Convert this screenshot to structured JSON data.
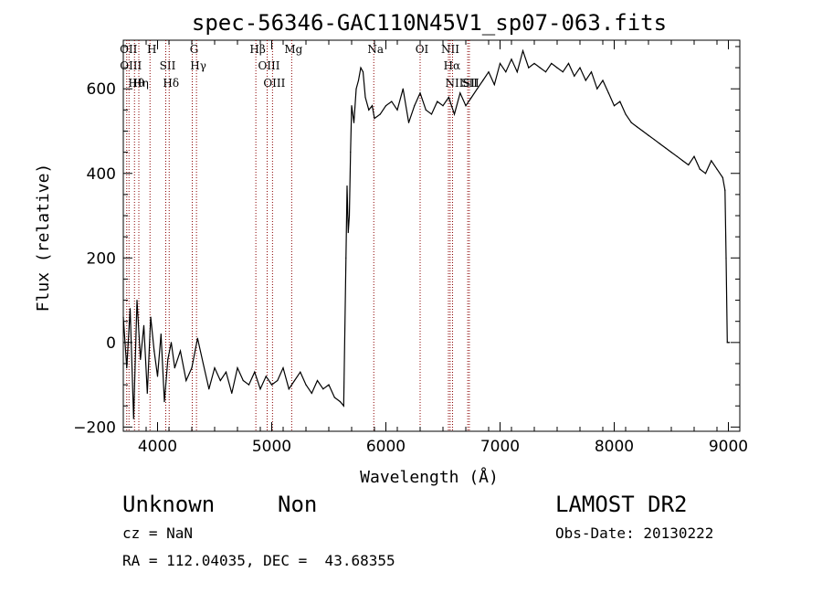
{
  "chart_data": {
    "type": "line",
    "title": "spec-56346-GAC110N45V1_sp07-063.fits",
    "xlabel": "Wavelength (Å)",
    "ylabel": "Flux (relative)",
    "xlim": [
      3700,
      9100
    ],
    "ylim": [
      -210,
      715
    ],
    "x_ticks": [
      4000,
      5000,
      6000,
      7000,
      8000,
      9000
    ],
    "y_ticks": [
      -200,
      0,
      200,
      400,
      600
    ],
    "grid": false,
    "series": [
      {
        "color": "#000000",
        "x": [
          3700,
          3730,
          3760,
          3790,
          3820,
          3850,
          3880,
          3910,
          3940,
          3970,
          4000,
          4030,
          4060,
          4090,
          4120,
          4150,
          4200,
          4250,
          4300,
          4350,
          4400,
          4450,
          4500,
          4550,
          4600,
          4650,
          4700,
          4750,
          4800,
          4850,
          4900,
          4950,
          5000,
          5050,
          5100,
          5150,
          5200,
          5250,
          5300,
          5350,
          5400,
          5450,
          5500,
          5550,
          5600,
          5630,
          5650,
          5660,
          5670,
          5680,
          5690,
          5700,
          5720,
          5740,
          5760,
          5780,
          5800,
          5820,
          5850,
          5880,
          5900,
          5950,
          6000,
          6050,
          6100,
          6150,
          6200,
          6250,
          6300,
          6350,
          6400,
          6450,
          6500,
          6550,
          6600,
          6650,
          6700,
          6750,
          6800,
          6850,
          6900,
          6950,
          7000,
          7050,
          7100,
          7150,
          7200,
          7250,
          7300,
          7350,
          7400,
          7450,
          7500,
          7550,
          7600,
          7650,
          7700,
          7750,
          7800,
          7850,
          7900,
          7950,
          8000,
          8050,
          8100,
          8150,
          8200,
          8250,
          8300,
          8350,
          8400,
          8450,
          8500,
          8550,
          8600,
          8650,
          8700,
          8750,
          8800,
          8850,
          8900,
          8950,
          8970,
          8980,
          8990,
          9000,
          9010
        ],
        "y": [
          60,
          -60,
          80,
          -180,
          100,
          -40,
          40,
          -120,
          60,
          -20,
          -80,
          20,
          -140,
          -40,
          0,
          -60,
          -20,
          -90,
          -60,
          10,
          -50,
          -110,
          -60,
          -90,
          -70,
          -120,
          -60,
          -90,
          -100,
          -70,
          -110,
          -80,
          -100,
          -90,
          -60,
          -110,
          -90,
          -70,
          -100,
          -120,
          -90,
          -110,
          -100,
          -130,
          -140,
          -150,
          200,
          370,
          260,
          300,
          450,
          560,
          520,
          600,
          620,
          650,
          640,
          580,
          550,
          560,
          530,
          540,
          560,
          570,
          550,
          600,
          520,
          560,
          590,
          550,
          540,
          570,
          560,
          580,
          540,
          590,
          560,
          580,
          600,
          620,
          640,
          610,
          660,
          640,
          670,
          640,
          690,
          650,
          660,
          650,
          640,
          660,
          650,
          640,
          660,
          630,
          650,
          620,
          640,
          600,
          620,
          590,
          560,
          570,
          540,
          520,
          510,
          500,
          490,
          480,
          470,
          460,
          450,
          440,
          430,
          420,
          440,
          410,
          400,
          430,
          410,
          390,
          360,
          200,
          0,
          0,
          0
        ]
      }
    ],
    "lines": [
      {
        "x": 3730,
        "label": "OII"
      },
      {
        "x": 3750,
        "label": "OIII"
      },
      {
        "x": 3798,
        "label": "Hθ"
      },
      {
        "x": 3836,
        "label": "Hη"
      },
      {
        "x": 3934,
        "label": "H"
      },
      {
        "x": 4072,
        "label": "SII"
      },
      {
        "x": 4102,
        "label": "Hδ"
      },
      {
        "x": 4304,
        "label": "G"
      },
      {
        "x": 4341,
        "label": "Hγ"
      },
      {
        "x": 4861,
        "label": "Hβ"
      },
      {
        "x": 4960,
        "label": "OIII"
      },
      {
        "x": 5007,
        "label": "OIII"
      },
      {
        "x": 5175,
        "label": "Mg"
      },
      {
        "x": 5894,
        "label": "Na"
      },
      {
        "x": 6300,
        "label": "OI"
      },
      {
        "x": 6548,
        "label": "NII"
      },
      {
        "x": 6563,
        "label": "Hα"
      },
      {
        "x": 6584,
        "label": "NII"
      },
      {
        "x": 6717,
        "label": "SII"
      },
      {
        "x": 6731,
        "label": "SII"
      }
    ],
    "line_color": "#8b0000"
  },
  "info": {
    "class": "Unknown",
    "subclass": "Non",
    "survey": "LAMOST DR2",
    "cz": "cz = NaN",
    "obs_date": "Obs-Date: 20130222",
    "coords": "RA = 112.04035, DEC =  43.68355"
  }
}
